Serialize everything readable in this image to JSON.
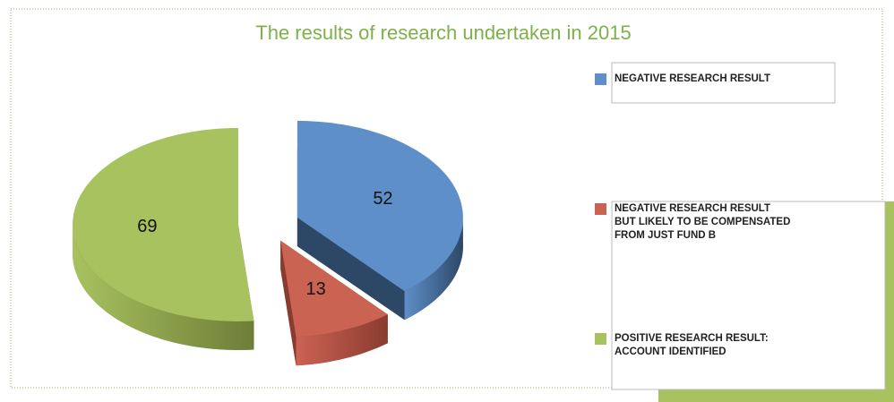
{
  "chart_data": {
    "type": "pie3d",
    "title": "The results of research undertaken in 2015",
    "categories": [
      "NEGATIVE RESEARCH RESULT",
      "NEGATIVE RESEARCH RESULT\nBUT LIKELY TO BE COMPENSATED\nFROM JUST FUND B",
      "POSITIVE RESEARCH RESULT:\nACCOUNT IDENTIFIED"
    ],
    "values": [
      52,
      13,
      69
    ],
    "colors": [
      "#5f8fc8",
      "#cb6353",
      "#a8c25f"
    ],
    "side_colors": [
      "#2d4767",
      "#8a3b2f",
      "#6d7e38"
    ]
  }
}
